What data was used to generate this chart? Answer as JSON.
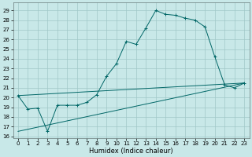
{
  "xlabel": "Humidex (Indice chaleur)",
  "bg_color": "#c8e8e8",
  "line_color": "#006666",
  "grid_color": "#a0c8c8",
  "xlim": [
    -0.5,
    23.5
  ],
  "ylim": [
    15.8,
    29.8
  ],
  "xticks": [
    0,
    1,
    2,
    3,
    4,
    5,
    6,
    7,
    8,
    9,
    10,
    11,
    12,
    13,
    14,
    15,
    16,
    17,
    18,
    19,
    20,
    21,
    22,
    23
  ],
  "yticks": [
    16,
    17,
    18,
    19,
    20,
    21,
    22,
    23,
    24,
    25,
    26,
    27,
    28,
    29
  ],
  "line1_x": [
    0,
    1,
    2,
    3,
    4,
    5,
    6,
    7,
    8,
    9,
    10,
    11,
    12,
    13,
    14,
    15,
    16,
    17,
    18,
    19,
    20,
    21,
    22,
    23
  ],
  "line1_y": [
    20.2,
    18.8,
    18.9,
    16.5,
    19.2,
    19.2,
    19.2,
    19.5,
    20.3,
    22.2,
    23.5,
    25.8,
    25.5,
    27.2,
    29.0,
    28.6,
    28.5,
    28.2,
    28.0,
    27.3,
    24.2,
    21.3,
    21.0,
    21.5
  ],
  "line2_x": [
    0,
    23
  ],
  "line2_y": [
    20.2,
    21.5
  ],
  "line3_x": [
    0,
    23
  ],
  "line3_y": [
    16.5,
    21.5
  ],
  "xlabel_fontsize": 6,
  "tick_labelsize": 5
}
